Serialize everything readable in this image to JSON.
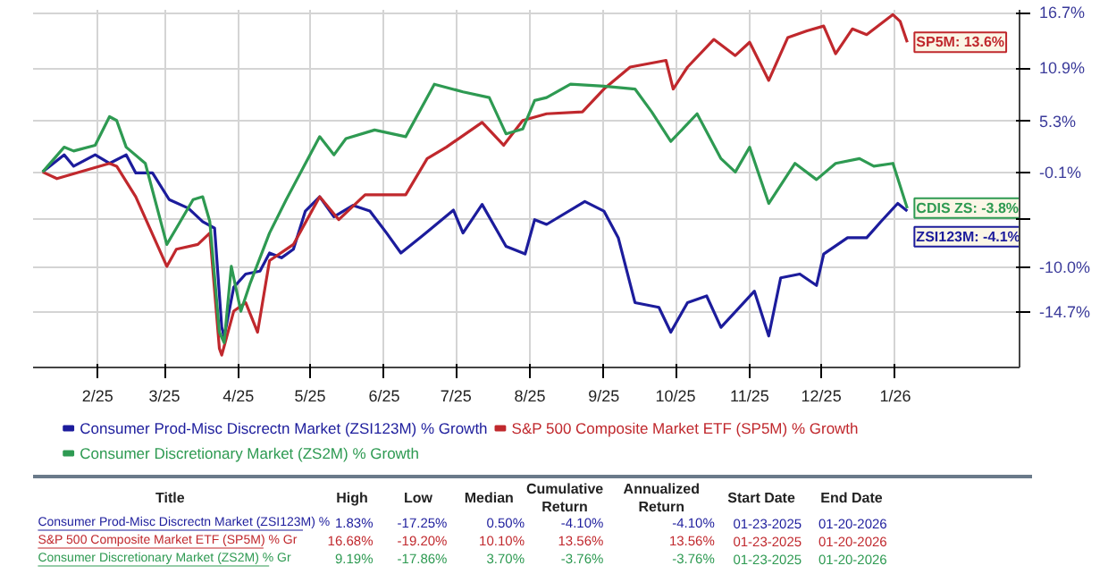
{
  "chart_data": {
    "type": "line",
    "xlim": [
      "2025-01-19",
      "2026-03-08"
    ],
    "xticks": [
      {
        "value": "2025-02-15",
        "label": "2/25"
      },
      {
        "value": "2025-03-15",
        "label": "3/25"
      },
      {
        "value": "2025-04-15",
        "label": "4/25"
      },
      {
        "value": "2025-05-15",
        "label": "5/25"
      },
      {
        "value": "2025-06-15",
        "label": "6/25"
      },
      {
        "value": "2025-07-15",
        "label": "7/25"
      },
      {
        "value": "2025-08-15",
        "label": "8/25"
      },
      {
        "value": "2025-09-15",
        "label": "9/25"
      },
      {
        "value": "2025-10-15",
        "label": "10/25"
      },
      {
        "value": "2025-11-15",
        "label": "11/25"
      },
      {
        "value": "2025-12-15",
        "label": "12/25"
      },
      {
        "value": "2026-01-15",
        "label": "1/26"
      }
    ],
    "ylim": [
      -20.5,
      17.0
    ],
    "yticks": [
      {
        "value": 16.7,
        "label": "16.7%"
      },
      {
        "value": 10.9,
        "label": "10.9%"
      },
      {
        "value": 5.3,
        "label": "5.3%"
      },
      {
        "value": -0.1,
        "label": "-0.1%"
      },
      {
        "value": -5.0,
        "label": null
      },
      {
        "value": -10.0,
        "label": "-10.0%"
      },
      {
        "value": -14.7,
        "label": "-14.7%"
      }
    ],
    "grid": true,
    "legend": "bottom",
    "marker": "none",
    "line_style": "solid",
    "series": [
      {
        "name": "Consumer Prod-Misc Discrectn Market (ZSI123M) % Growth",
        "color": "#1c1c9c",
        "x": [
          "2025-01-23",
          "2025-02-01",
          "2025-02-05",
          "2025-02-14",
          "2025-02-20",
          "2025-02-27",
          "2025-03-03",
          "2025-03-10",
          "2025-03-17",
          "2025-03-25",
          "2025-03-31",
          "2025-04-05",
          "2025-04-08",
          "2025-04-09",
          "2025-04-13",
          "2025-04-18",
          "2025-04-24",
          "2025-04-28",
          "2025-05-03",
          "2025-05-08",
          "2025-05-13",
          "2025-05-19",
          "2025-05-25",
          "2025-06-02",
          "2025-06-09",
          "2025-06-16",
          "2025-06-22",
          "2025-07-01",
          "2025-07-14",
          "2025-07-18",
          "2025-07-26",
          "2025-08-05",
          "2025-08-13",
          "2025-08-17",
          "2025-08-22",
          "2025-09-07",
          "2025-09-15",
          "2025-09-21",
          "2025-09-28",
          "2025-10-08",
          "2025-10-13",
          "2025-10-20",
          "2025-10-28",
          "2025-11-03",
          "2025-11-17",
          "2025-11-23",
          "2025-11-28",
          "2025-12-06",
          "2025-12-13",
          "2025-12-16",
          "2025-12-26",
          "2026-01-03",
          "2026-01-09",
          "2026-01-16",
          "2026-01-20"
        ],
        "values": [
          0.0,
          1.8,
          0.6,
          1.8,
          0.9,
          1.8,
          -0.1,
          -0.1,
          -2.9,
          -3.8,
          -5.2,
          -5.9,
          -16.3,
          -17.3,
          -12.1,
          -10.7,
          -10.4,
          -8.5,
          -9.0,
          -8.1,
          -4.1,
          -2.6,
          -4.7,
          -3.5,
          -4.1,
          -6.4,
          -8.5,
          -6.7,
          -4.0,
          -6.4,
          -3.4,
          -7.8,
          -8.6,
          -5.0,
          -5.5,
          -3.1,
          -4.1,
          -6.9,
          -13.7,
          -14.2,
          -16.8,
          -13.7,
          -13.0,
          -16.3,
          -12.5,
          -17.2,
          -11.1,
          -10.7,
          -11.9,
          -8.6,
          -6.9,
          -6.9,
          -5.2,
          -3.3,
          -4.1
        ]
      },
      {
        "name": "S&P 500 Composite Market ETF (SP5M) % Growth",
        "color": "#c0282d",
        "x": [
          "2025-01-23",
          "2025-01-29",
          "2025-02-20",
          "2025-02-23",
          "2025-03-03",
          "2025-03-16",
          "2025-03-20",
          "2025-03-29",
          "2025-04-03",
          "2025-04-07",
          "2025-04-08",
          "2025-04-13",
          "2025-04-18",
          "2025-04-23",
          "2025-04-28",
          "2025-05-08",
          "2025-05-19",
          "2025-05-27",
          "2025-06-07",
          "2025-06-24",
          "2025-07-03",
          "2025-07-11",
          "2025-07-26",
          "2025-08-04",
          "2025-08-12",
          "2025-08-22",
          "2025-09-06",
          "2025-09-15",
          "2025-09-26",
          "2025-10-11",
          "2025-10-14",
          "2025-10-20",
          "2025-10-31",
          "2025-11-09",
          "2025-11-15",
          "2025-11-23",
          "2025-12-01",
          "2025-12-09",
          "2025-12-16",
          "2025-12-21",
          "2025-12-28",
          "2026-01-03",
          "2026-01-14",
          "2026-01-17",
          "2026-01-20"
        ],
        "values": [
          0.0,
          -0.7,
          0.9,
          0.6,
          -2.6,
          -9.9,
          -8.1,
          -7.6,
          -6.4,
          -18.5,
          -19.2,
          -14.6,
          -13.7,
          -16.8,
          -9.3,
          -7.6,
          -2.6,
          -5.0,
          -2.4,
          -2.4,
          1.4,
          2.6,
          5.2,
          2.8,
          5.4,
          6.1,
          6.3,
          8.7,
          11.0,
          11.7,
          8.7,
          11.0,
          13.9,
          12.2,
          13.6,
          9.6,
          14.1,
          14.8,
          15.3,
          12.4,
          15.0,
          14.4,
          16.5,
          15.8,
          13.6
        ]
      },
      {
        "name": "Consumer Discretionary Market (ZS2M) % Growth",
        "color": "#2e9a52",
        "x": [
          "2025-01-23",
          "2025-02-01",
          "2025-02-05",
          "2025-02-14",
          "2025-02-20",
          "2025-02-23",
          "2025-02-27",
          "2025-03-07",
          "2025-03-16",
          "2025-03-20",
          "2025-03-27",
          "2025-03-31",
          "2025-04-03",
          "2025-04-07",
          "2025-04-09",
          "2025-04-12",
          "2025-04-16",
          "2025-04-20",
          "2025-04-28",
          "2025-05-05",
          "2025-05-19",
          "2025-05-25",
          "2025-05-30",
          "2025-06-11",
          "2025-06-24",
          "2025-07-06",
          "2025-07-18",
          "2025-07-29",
          "2025-08-05",
          "2025-08-12",
          "2025-08-17",
          "2025-08-22",
          "2025-09-01",
          "2025-09-15",
          "2025-09-28",
          "2025-10-05",
          "2025-10-13",
          "2025-10-24",
          "2025-11-03",
          "2025-11-09",
          "2025-11-15",
          "2025-11-23",
          "2025-12-04",
          "2025-12-13",
          "2025-12-21",
          "2025-12-31",
          "2026-01-06",
          "2026-01-14",
          "2026-01-20"
        ],
        "values": [
          0.0,
          2.6,
          2.2,
          2.8,
          5.8,
          5.4,
          2.6,
          0.9,
          -7.6,
          -5.9,
          -2.9,
          -2.6,
          -5.2,
          -16.8,
          -17.9,
          -9.9,
          -14.6,
          -11.6,
          -6.4,
          -2.9,
          3.7,
          1.8,
          3.5,
          4.4,
          3.7,
          9.2,
          8.4,
          7.8,
          4.0,
          4.5,
          7.5,
          7.8,
          9.2,
          9.0,
          8.7,
          6.3,
          3.2,
          6.1,
          1.4,
          0.0,
          2.6,
          -3.3,
          0.9,
          -0.8,
          0.9,
          1.4,
          0.6,
          0.9,
          -3.8
        ]
      }
    ],
    "annotations": [
      {
        "text": "ZSI123M: -4.1%",
        "x": "2026-01-20",
        "y": -4.1
      },
      {
        "text": "SP5M: 13.6%",
        "x": "2026-01-20",
        "y": 13.6
      },
      {
        "text": "CDIS ZS: -3.8%",
        "x": "2026-01-20",
        "y": -3.8
      },
      "Title",
      "High",
      "Low",
      "Median",
      "Cumulative\nReturn",
      "Annualized\nReturn",
      "Start Date",
      "End Date",
      "Consumer Prod-Misc Discrectn Market (ZSI123M) %",
      "1.83%",
      "-17.25%",
      "0.50%",
      "-4.10%",
      "-4.10%",
      "01-23-2025",
      "01-20-2026",
      "S&P 500 Composite Market ETF (SP5M) % Gr",
      "16.68%",
      "-19.20%",
      "10.10%",
      "13.56%",
      "13.56%",
      "01-23-2025",
      "01-20-2026",
      "Consumer Discretionary Market (ZS2M) % Gr",
      "9.19%",
      "-17.86%",
      "3.70%",
      "-3.76%",
      "-3.76%",
      "01-23-2025",
      "01-20-2026"
    ]
  }
}
